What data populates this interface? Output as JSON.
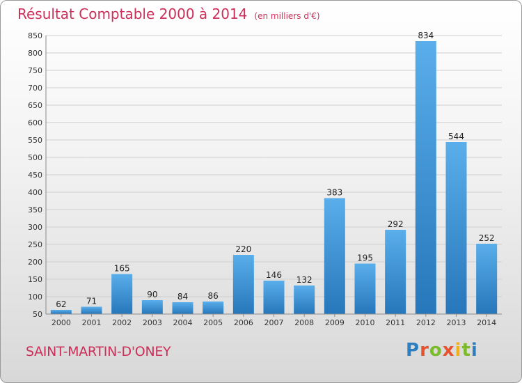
{
  "header": {
    "title": "Résultat Comptable 2000 à 2014",
    "subtitle": "(en milliers d'€)"
  },
  "footer": {
    "commune": "SAINT-MARTIN-D'ONEY",
    "logo_text": "Proxiti"
  },
  "colors": {
    "bar_top": "#5aaeea",
    "bar_bottom": "#2677bb",
    "title": "#cc2f59",
    "logo_letters": [
      "#2e7fc1",
      "#e8532d",
      "#7cbb2b",
      "#e8532d",
      "#f2b11a",
      "#7cbb2b",
      "#2e7fc1"
    ]
  },
  "chart_data": {
    "type": "bar",
    "title": "Résultat Comptable 2000 à 2014",
    "subtitle": "(en milliers d'€)",
    "categories": [
      "2000",
      "2001",
      "2002",
      "2003",
      "2004",
      "2005",
      "2006",
      "2007",
      "2008",
      "2009",
      "2010",
      "2011",
      "2012",
      "2013",
      "2014"
    ],
    "values": [
      62,
      71,
      165,
      90,
      84,
      86,
      220,
      146,
      132,
      383,
      195,
      292,
      834,
      544,
      252
    ],
    "data_labels": [
      "62",
      "71",
      "165",
      "90",
      "84",
      "86",
      "220",
      "146",
      "132",
      "383",
      "195",
      "292",
      "834",
      "544",
      "252"
    ],
    "yticks": [
      50,
      100,
      150,
      200,
      250,
      300,
      350,
      400,
      450,
      500,
      550,
      600,
      650,
      700,
      750,
      800,
      850
    ],
    "ylim": [
      50,
      850
    ],
    "grid": true,
    "xlabel": "",
    "ylabel": ""
  }
}
